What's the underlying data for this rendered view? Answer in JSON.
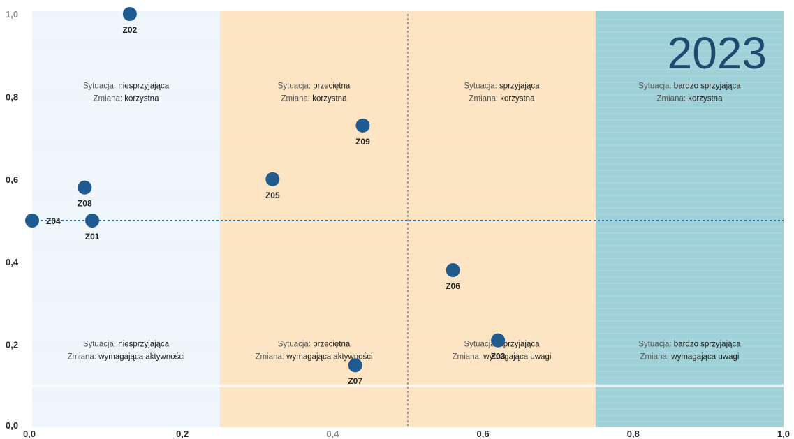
{
  "chart_data": {
    "type": "scatter",
    "title": "2023",
    "xlim": [
      0.0,
      1.0
    ],
    "ylim": [
      0.0,
      1.0
    ],
    "x_ticks": [
      "0,0",
      "0,2",
      "0,4",
      "0,6",
      "0,8",
      "1,0"
    ],
    "y_ticks": [
      "0,0",
      "0,2",
      "0,4",
      "0,6",
      "0,8",
      "1,0"
    ],
    "grid": false,
    "reference_lines": {
      "x": 0.5,
      "y": 0.5
    },
    "bands": [
      {
        "from": 0.0,
        "to": 0.25,
        "color": "#eef5fb"
      },
      {
        "from": 0.25,
        "to": 0.5,
        "color": "#fde4c2"
      },
      {
        "from": 0.5,
        "to": 0.75,
        "color": "#fde4c2"
      },
      {
        "from": 0.75,
        "to": 1.0,
        "color": "#9fd1d8"
      }
    ],
    "points": [
      {
        "label": "Z02",
        "x": 0.13,
        "y": 1.0
      },
      {
        "label": "Z09",
        "x": 0.44,
        "y": 0.73
      },
      {
        "label": "Z05",
        "x": 0.32,
        "y": 0.6
      },
      {
        "label": "Z08",
        "x": 0.07,
        "y": 0.58
      },
      {
        "label": "Z04",
        "x": 0.0,
        "y": 0.5
      },
      {
        "label": "Z01",
        "x": 0.08,
        "y": 0.5
      },
      {
        "label": "Z06",
        "x": 0.56,
        "y": 0.38
      },
      {
        "label": "Z03",
        "x": 0.62,
        "y": 0.21
      },
      {
        "label": "Z07",
        "x": 0.43,
        "y": 0.15
      }
    ],
    "point_color": "#1f5b8f",
    "quadrant_labels": [
      {
        "band": 0,
        "row": "top",
        "line1_prefix": "Sytuacja: ",
        "line1_value": "niesprzyjająca",
        "line2_prefix": "Zmiana: ",
        "line2_value": "korzystna"
      },
      {
        "band": 1,
        "row": "top",
        "line1_prefix": "Sytuacja: ",
        "line1_value": "przeciętna",
        "line2_prefix": "Zmiana: ",
        "line2_value": "korzystna"
      },
      {
        "band": 2,
        "row": "top",
        "line1_prefix": "Sytuacja: ",
        "line1_value": "sprzyjająca",
        "line2_prefix": "Zmiana: ",
        "line2_value": "korzystna"
      },
      {
        "band": 3,
        "row": "top",
        "line1_prefix": "Sytuacja: ",
        "line1_value": "bardzo sprzyjająca",
        "line2_prefix": "Zmiana: ",
        "line2_value": "korzystna"
      },
      {
        "band": 0,
        "row": "bottom",
        "line1_prefix": "Sytuacja: ",
        "line1_value": "niesprzyjająca",
        "line2_prefix": "Zmiana: ",
        "line2_value": "wymagająca aktywności"
      },
      {
        "band": 1,
        "row": "bottom",
        "line1_prefix": "Sytuacja: ",
        "line1_value": "przeciętna",
        "line2_prefix": "Zmiana: ",
        "line2_value": "wymagająca aktywności"
      },
      {
        "band": 2,
        "row": "bottom",
        "line1_prefix": "Sytuacja: ",
        "line1_value": "sprzyjająca",
        "line2_prefix": "Zmiana: ",
        "line2_value": "wymagająca uwagi"
      },
      {
        "band": 3,
        "row": "bottom",
        "line1_prefix": "Sytuacja: ",
        "line1_value": "bardzo sprzyjająca",
        "line2_prefix": "Zmiana: ",
        "line2_value": "wymagająca uwagi"
      }
    ]
  }
}
